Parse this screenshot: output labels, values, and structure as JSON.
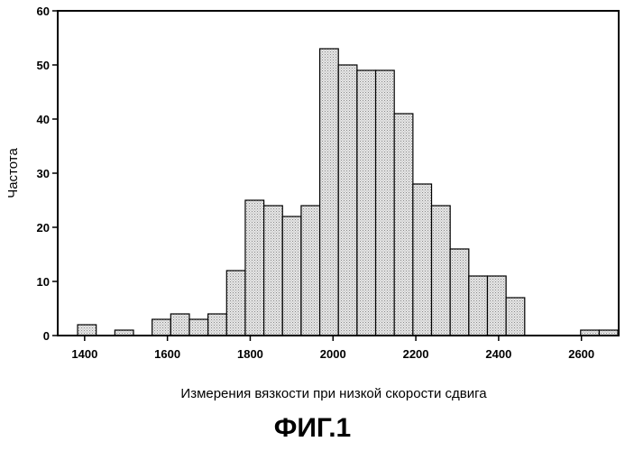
{
  "chart_data": {
    "type": "bar",
    "title": "",
    "xlabel": "Измерения вязкости при низкой скорости сдвига",
    "ylabel": "Частота",
    "bin_width": 45,
    "xlim": [
      1335,
      2690
    ],
    "ylim": [
      0,
      60
    ],
    "x_ticks": [
      1400,
      1600,
      1800,
      2000,
      2200,
      2400,
      2600
    ],
    "y_ticks": [
      0,
      10,
      20,
      30,
      40,
      50,
      60
    ],
    "bins": [
      {
        "x": 1383,
        "y": 2
      },
      {
        "x": 1473,
        "y": 1
      },
      {
        "x": 1563,
        "y": 3
      },
      {
        "x": 1608,
        "y": 4
      },
      {
        "x": 1653,
        "y": 3
      },
      {
        "x": 1698,
        "y": 4
      },
      {
        "x": 1743,
        "y": 12
      },
      {
        "x": 1788,
        "y": 25
      },
      {
        "x": 1833,
        "y": 24
      },
      {
        "x": 1878,
        "y": 22
      },
      {
        "x": 1923,
        "y": 24
      },
      {
        "x": 1968,
        "y": 53
      },
      {
        "x": 2013,
        "y": 50
      },
      {
        "x": 2058,
        "y": 49
      },
      {
        "x": 2103,
        "y": 49
      },
      {
        "x": 2148,
        "y": 41
      },
      {
        "x": 2193,
        "y": 28
      },
      {
        "x": 2238,
        "y": 24
      },
      {
        "x": 2283,
        "y": 16
      },
      {
        "x": 2328,
        "y": 11
      },
      {
        "x": 2373,
        "y": 11
      },
      {
        "x": 2418,
        "y": 7
      },
      {
        "x": 2598,
        "y": 1
      },
      {
        "x": 2643,
        "y": 1
      }
    ],
    "grid": false,
    "legend": "none",
    "bar_color": "#d9d9d9",
    "edge_color": "#000000"
  },
  "caption": "ФИГ.1"
}
